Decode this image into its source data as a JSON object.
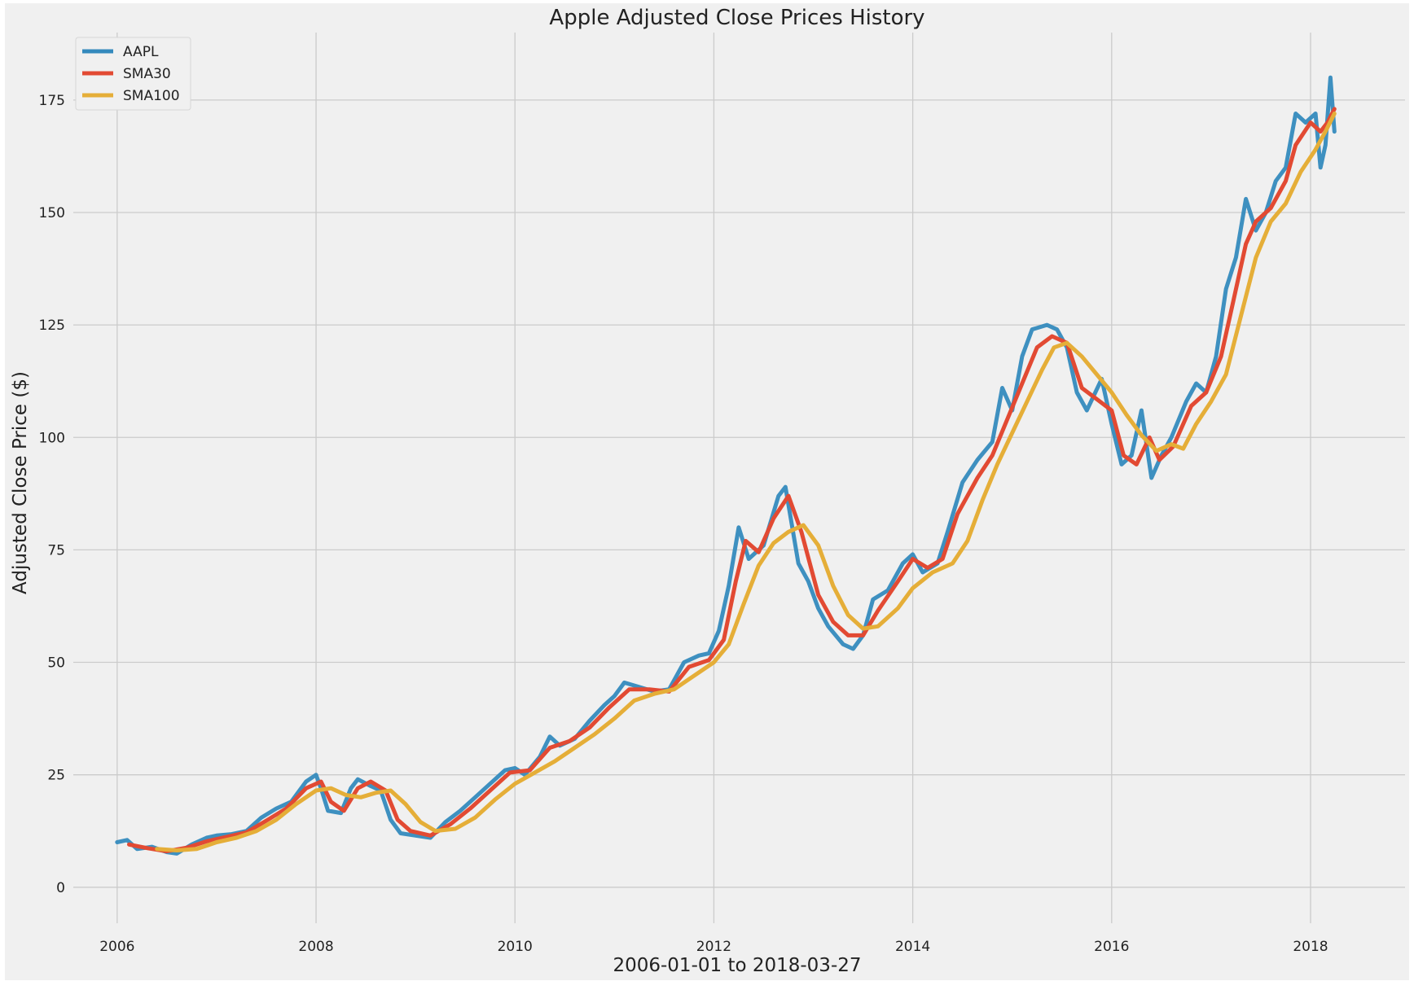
{
  "chart_data": {
    "type": "line",
    "title": "Apple Adjusted Close Prices History",
    "xlabel": "2006-01-01 to 2018-03-27",
    "ylabel": "Adjusted Close Price ($)",
    "xlim": [
      2005.6,
      2018.95
    ],
    "ylim": [
      -8,
      190
    ],
    "x_ticks": [
      2006,
      2008,
      2010,
      2012,
      2014,
      2016,
      2018
    ],
    "y_ticks": [
      0,
      25,
      50,
      75,
      100,
      125,
      150,
      175
    ],
    "grid": true,
    "legend_position": "top-left",
    "series": [
      {
        "name": "AAPL",
        "color": "#348ABD",
        "points": [
          [
            2006.0,
            10
          ],
          [
            2006.1,
            10.5
          ],
          [
            2006.2,
            8.5
          ],
          [
            2006.35,
            9
          ],
          [
            2006.5,
            7.8
          ],
          [
            2006.6,
            7.5
          ],
          [
            2006.75,
            9.5
          ],
          [
            2006.9,
            11
          ],
          [
            2007.0,
            11.5
          ],
          [
            2007.15,
            11.8
          ],
          [
            2007.3,
            12.5
          ],
          [
            2007.45,
            15.5
          ],
          [
            2007.6,
            17.5
          ],
          [
            2007.75,
            19
          ],
          [
            2007.9,
            23.5
          ],
          [
            2008.0,
            25
          ],
          [
            2008.05,
            22
          ],
          [
            2008.12,
            17
          ],
          [
            2008.25,
            16.5
          ],
          [
            2008.35,
            22
          ],
          [
            2008.42,
            24
          ],
          [
            2008.55,
            22.5
          ],
          [
            2008.65,
            21.5
          ],
          [
            2008.75,
            15
          ],
          [
            2008.85,
            12
          ],
          [
            2009.0,
            11.5
          ],
          [
            2009.15,
            11
          ],
          [
            2009.3,
            14.5
          ],
          [
            2009.45,
            17
          ],
          [
            2009.6,
            20
          ],
          [
            2009.75,
            23
          ],
          [
            2009.9,
            26
          ],
          [
            2010.0,
            26.5
          ],
          [
            2010.1,
            25
          ],
          [
            2010.25,
            29
          ],
          [
            2010.35,
            33.5
          ],
          [
            2010.45,
            31.5
          ],
          [
            2010.6,
            33
          ],
          [
            2010.75,
            37
          ],
          [
            2010.9,
            40.5
          ],
          [
            2011.0,
            42.5
          ],
          [
            2011.1,
            45.5
          ],
          [
            2011.25,
            44.5
          ],
          [
            2011.4,
            43.5
          ],
          [
            2011.55,
            44
          ],
          [
            2011.7,
            50
          ],
          [
            2011.85,
            51.5
          ],
          [
            2011.95,
            52
          ],
          [
            2012.05,
            57
          ],
          [
            2012.15,
            67
          ],
          [
            2012.25,
            80
          ],
          [
            2012.35,
            73
          ],
          [
            2012.5,
            76
          ],
          [
            2012.65,
            87
          ],
          [
            2012.72,
            89
          ],
          [
            2012.85,
            72
          ],
          [
            2012.95,
            68
          ],
          [
            2013.05,
            62
          ],
          [
            2013.15,
            58
          ],
          [
            2013.3,
            54
          ],
          [
            2013.4,
            53
          ],
          [
            2013.5,
            56
          ],
          [
            2013.6,
            64
          ],
          [
            2013.75,
            66
          ],
          [
            2013.9,
            72
          ],
          [
            2014.0,
            74
          ],
          [
            2014.1,
            70
          ],
          [
            2014.25,
            72
          ],
          [
            2014.35,
            79
          ],
          [
            2014.5,
            90
          ],
          [
            2014.65,
            95
          ],
          [
            2014.8,
            99
          ],
          [
            2014.9,
            111
          ],
          [
            2015.0,
            106
          ],
          [
            2015.1,
            118
          ],
          [
            2015.2,
            124
          ],
          [
            2015.35,
            125
          ],
          [
            2015.45,
            124
          ],
          [
            2015.55,
            120
          ],
          [
            2015.65,
            110
          ],
          [
            2015.75,
            106
          ],
          [
            2015.9,
            113
          ],
          [
            2016.0,
            103
          ],
          [
            2016.1,
            94
          ],
          [
            2016.2,
            96
          ],
          [
            2016.3,
            106
          ],
          [
            2016.4,
            91
          ],
          [
            2016.5,
            96
          ],
          [
            2016.6,
            100
          ],
          [
            2016.75,
            108
          ],
          [
            2016.85,
            112
          ],
          [
            2016.95,
            110
          ],
          [
            2017.05,
            118
          ],
          [
            2017.15,
            133
          ],
          [
            2017.25,
            140
          ],
          [
            2017.35,
            153
          ],
          [
            2017.45,
            146
          ],
          [
            2017.55,
            150
          ],
          [
            2017.65,
            157
          ],
          [
            2017.75,
            160
          ],
          [
            2017.85,
            172
          ],
          [
            2017.95,
            170
          ],
          [
            2018.05,
            172
          ],
          [
            2018.1,
            160
          ],
          [
            2018.15,
            165
          ],
          [
            2018.2,
            180
          ],
          [
            2018.24,
            168
          ]
        ]
      },
      {
        "name": "SMA30",
        "color": "#E24A33",
        "points": [
          [
            2006.12,
            9.5
          ],
          [
            2006.3,
            8.7
          ],
          [
            2006.5,
            8
          ],
          [
            2006.7,
            8.8
          ],
          [
            2006.9,
            10.2
          ],
          [
            2007.1,
            11.2
          ],
          [
            2007.3,
            12.2
          ],
          [
            2007.5,
            14.8
          ],
          [
            2007.7,
            17.5
          ],
          [
            2007.9,
            22
          ],
          [
            2008.05,
            23.5
          ],
          [
            2008.15,
            19
          ],
          [
            2008.28,
            17
          ],
          [
            2008.42,
            22
          ],
          [
            2008.55,
            23.5
          ],
          [
            2008.7,
            21.5
          ],
          [
            2008.82,
            15
          ],
          [
            2008.95,
            12.5
          ],
          [
            2009.15,
            11.5
          ],
          [
            2009.35,
            14
          ],
          [
            2009.55,
            17.5
          ],
          [
            2009.75,
            21.5
          ],
          [
            2009.95,
            25.5
          ],
          [
            2010.15,
            26
          ],
          [
            2010.35,
            31
          ],
          [
            2010.55,
            32.5
          ],
          [
            2010.75,
            35.5
          ],
          [
            2010.95,
            40
          ],
          [
            2011.15,
            44
          ],
          [
            2011.35,
            44
          ],
          [
            2011.55,
            43.5
          ],
          [
            2011.75,
            49
          ],
          [
            2011.95,
            50.5
          ],
          [
            2012.1,
            55
          ],
          [
            2012.22,
            68
          ],
          [
            2012.32,
            77
          ],
          [
            2012.45,
            74.5
          ],
          [
            2012.6,
            82
          ],
          [
            2012.75,
            87
          ],
          [
            2012.88,
            79
          ],
          [
            2013.05,
            65
          ],
          [
            2013.2,
            59
          ],
          [
            2013.35,
            56
          ],
          [
            2013.5,
            56
          ],
          [
            2013.65,
            61.5
          ],
          [
            2013.85,
            68
          ],
          [
            2014.0,
            73
          ],
          [
            2014.15,
            71
          ],
          [
            2014.3,
            73
          ],
          [
            2014.45,
            83
          ],
          [
            2014.65,
            91
          ],
          [
            2014.8,
            96
          ],
          [
            2014.95,
            104
          ],
          [
            2015.1,
            112
          ],
          [
            2015.25,
            120
          ],
          [
            2015.4,
            122.5
          ],
          [
            2015.55,
            121
          ],
          [
            2015.7,
            111
          ],
          [
            2015.85,
            108.5
          ],
          [
            2016.0,
            106
          ],
          [
            2016.12,
            96
          ],
          [
            2016.25,
            94
          ],
          [
            2016.38,
            100
          ],
          [
            2016.48,
            95
          ],
          [
            2016.62,
            98
          ],
          [
            2016.8,
            107
          ],
          [
            2016.95,
            110
          ],
          [
            2017.1,
            118
          ],
          [
            2017.22,
            130
          ],
          [
            2017.35,
            143
          ],
          [
            2017.45,
            148
          ],
          [
            2017.6,
            151
          ],
          [
            2017.75,
            157
          ],
          [
            2017.85,
            165
          ],
          [
            2018.0,
            170
          ],
          [
            2018.1,
            168
          ],
          [
            2018.17,
            170
          ],
          [
            2018.24,
            173
          ]
        ]
      },
      {
        "name": "SMA100",
        "color": "#E5AE38",
        "points": [
          [
            2006.4,
            8.5
          ],
          [
            2006.6,
            8.2
          ],
          [
            2006.8,
            8.5
          ],
          [
            2007.0,
            10
          ],
          [
            2007.2,
            11
          ],
          [
            2007.4,
            12.5
          ],
          [
            2007.6,
            15
          ],
          [
            2007.8,
            18.5
          ],
          [
            2008.0,
            21.5
          ],
          [
            2008.15,
            22
          ],
          [
            2008.3,
            20.5
          ],
          [
            2008.45,
            20
          ],
          [
            2008.6,
            21
          ],
          [
            2008.75,
            21.5
          ],
          [
            2008.9,
            18.5
          ],
          [
            2009.05,
            14.5
          ],
          [
            2009.2,
            12.5
          ],
          [
            2009.4,
            13
          ],
          [
            2009.6,
            15.5
          ],
          [
            2009.8,
            19.5
          ],
          [
            2010.0,
            23
          ],
          [
            2010.2,
            25.5
          ],
          [
            2010.4,
            28
          ],
          [
            2010.6,
            31
          ],
          [
            2010.8,
            34
          ],
          [
            2011.0,
            37.5
          ],
          [
            2011.2,
            41.5
          ],
          [
            2011.4,
            43
          ],
          [
            2011.6,
            44
          ],
          [
            2011.8,
            47
          ],
          [
            2012.0,
            50
          ],
          [
            2012.15,
            54
          ],
          [
            2012.3,
            63
          ],
          [
            2012.45,
            71.5
          ],
          [
            2012.6,
            76.5
          ],
          [
            2012.75,
            79
          ],
          [
            2012.9,
            80.5
          ],
          [
            2013.05,
            76
          ],
          [
            2013.2,
            67
          ],
          [
            2013.35,
            60.5
          ],
          [
            2013.5,
            57.5
          ],
          [
            2013.65,
            58
          ],
          [
            2013.85,
            62
          ],
          [
            2014.0,
            66.5
          ],
          [
            2014.2,
            70
          ],
          [
            2014.4,
            72
          ],
          [
            2014.55,
            77
          ],
          [
            2014.7,
            86
          ],
          [
            2014.85,
            94
          ],
          [
            2015.0,
            101
          ],
          [
            2015.15,
            108
          ],
          [
            2015.3,
            115
          ],
          [
            2015.42,
            120
          ],
          [
            2015.55,
            121
          ],
          [
            2015.7,
            118
          ],
          [
            2015.85,
            114
          ],
          [
            2016.0,
            110
          ],
          [
            2016.15,
            105
          ],
          [
            2016.3,
            100.5
          ],
          [
            2016.45,
            97
          ],
          [
            2016.6,
            98.5
          ],
          [
            2016.72,
            97.5
          ],
          [
            2016.85,
            103
          ],
          [
            2017.0,
            108
          ],
          [
            2017.15,
            114
          ],
          [
            2017.3,
            127
          ],
          [
            2017.45,
            140
          ],
          [
            2017.6,
            148
          ],
          [
            2017.75,
            152
          ],
          [
            2017.9,
            159
          ],
          [
            2018.05,
            164
          ],
          [
            2018.15,
            168
          ],
          [
            2018.24,
            172
          ]
        ]
      }
    ]
  }
}
